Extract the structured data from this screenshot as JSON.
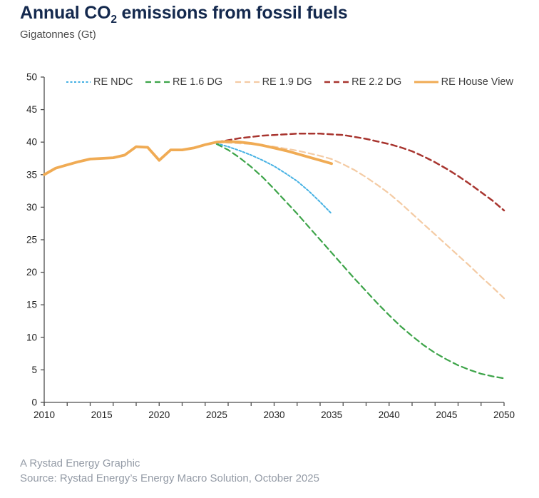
{
  "header": {
    "title_prefix": "Annual CO",
    "title_subscript": "2",
    "title_suffix": " emissions from fossil fuels",
    "subtitle": "Gigatonnes (Gt)"
  },
  "footer": {
    "credit": "A Rystad Energy Graphic",
    "source": "Source: Rystad Energy’s Energy Macro Solution, October 2025"
  },
  "colors": {
    "title_navy": "#14294e",
    "subtitle_gray": "#4d4d4d",
    "axis": "#4d4d4d",
    "tick_text": "#1f1f1f",
    "footer_gray": "#949ba6",
    "re_ndc_blue": "#45b1e3",
    "re_16_green": "#3da449",
    "re_19_tan": "#f4cba4",
    "re_22_red": "#a8352f",
    "house_view_orange": "#f0ab54"
  },
  "chart_data": {
    "type": "line",
    "title": "Annual CO2 emissions from fossil fuels",
    "xlabel": "",
    "ylabel": "Gigatonnes (Gt)",
    "xlim": [
      2010,
      2050
    ],
    "ylim": [
      0,
      50
    ],
    "x_ticks": [
      2010,
      2015,
      2020,
      2025,
      2030,
      2035,
      2040,
      2045,
      2050
    ],
    "x_minor_tick_step": 2,
    "y_ticks": [
      0,
      5,
      10,
      15,
      20,
      25,
      30,
      35,
      40,
      45,
      50
    ],
    "grid": false,
    "legend_position": "top",
    "series": [
      {
        "name": "RE NDC",
        "color": "#45b1e3",
        "dash": "3 2.5",
        "width": 2,
        "x": [
          2025,
          2026,
          2027,
          2028,
          2029,
          2030,
          2031,
          2032,
          2033,
          2034,
          2035
        ],
        "values": [
          39.8,
          39.3,
          38.7,
          38.0,
          37.2,
          36.3,
          35.2,
          34.0,
          32.5,
          30.8,
          29.0
        ]
      },
      {
        "name": "RE 1.6 DG",
        "color": "#3da449",
        "dash": "8 5",
        "width": 2.2,
        "x": [
          2025,
          2026,
          2027,
          2028,
          2029,
          2030,
          2031,
          2032,
          2033,
          2034,
          2035,
          2036,
          2037,
          2038,
          2039,
          2040,
          2041,
          2042,
          2043,
          2044,
          2045,
          2046,
          2047,
          2048,
          2049,
          2050
        ],
        "values": [
          39.7,
          38.8,
          37.6,
          36.2,
          34.6,
          32.8,
          30.9,
          29.0,
          27.0,
          25.0,
          23.0,
          21.0,
          19.0,
          17.1,
          15.2,
          13.4,
          11.7,
          10.2,
          8.8,
          7.6,
          6.6,
          5.7,
          5.0,
          4.4,
          4.0,
          3.7
        ]
      },
      {
        "name": "RE 1.9 DG",
        "color": "#f4cba4",
        "dash": "8 5",
        "width": 2.2,
        "x": [
          2025,
          2026,
          2027,
          2028,
          2029,
          2030,
          2031,
          2032,
          2033,
          2034,
          2035,
          2036,
          2037,
          2038,
          2039,
          2040,
          2041,
          2042,
          2043,
          2044,
          2045,
          2046,
          2047,
          2048,
          2049,
          2050
        ],
        "values": [
          40.0,
          39.9,
          39.8,
          39.7,
          39.5,
          39.3,
          39.0,
          38.7,
          38.3,
          37.9,
          37.4,
          36.6,
          35.7,
          34.6,
          33.4,
          32.1,
          30.6,
          29.0,
          27.4,
          25.8,
          24.2,
          22.6,
          21.0,
          19.3,
          17.7,
          16.0
        ]
      },
      {
        "name": "RE 2.2 DG",
        "color": "#a8352f",
        "dash": "8 5",
        "width": 2.5,
        "x": [
          2025,
          2026,
          2027,
          2028,
          2029,
          2030,
          2031,
          2032,
          2033,
          2034,
          2035,
          2036,
          2037,
          2038,
          2039,
          2040,
          2041,
          2042,
          2043,
          2044,
          2045,
          2046,
          2047,
          2048,
          2049,
          2050
        ],
        "values": [
          40.0,
          40.3,
          40.6,
          40.8,
          41.0,
          41.1,
          41.2,
          41.3,
          41.3,
          41.3,
          41.2,
          41.1,
          40.8,
          40.5,
          40.1,
          39.7,
          39.2,
          38.6,
          37.8,
          36.9,
          35.9,
          34.8,
          33.6,
          32.3,
          31.0,
          29.5
        ]
      },
      {
        "name": "RE House View",
        "color": "#f0ab54",
        "dash": "",
        "width": 3.8,
        "x": [
          2010,
          2011,
          2012,
          2013,
          2014,
          2015,
          2016,
          2017,
          2018,
          2019,
          2020,
          2021,
          2022,
          2023,
          2024,
          2025,
          2026,
          2027,
          2028,
          2029,
          2030,
          2031,
          2032,
          2033,
          2034,
          2035
        ],
        "values": [
          35.0,
          36.0,
          36.5,
          37.0,
          37.4,
          37.5,
          37.6,
          38.0,
          39.3,
          39.2,
          37.2,
          38.8,
          38.8,
          39.1,
          39.6,
          40.0,
          40.1,
          40.0,
          39.8,
          39.5,
          39.1,
          38.7,
          38.2,
          37.7,
          37.2,
          36.7
        ]
      }
    ]
  }
}
